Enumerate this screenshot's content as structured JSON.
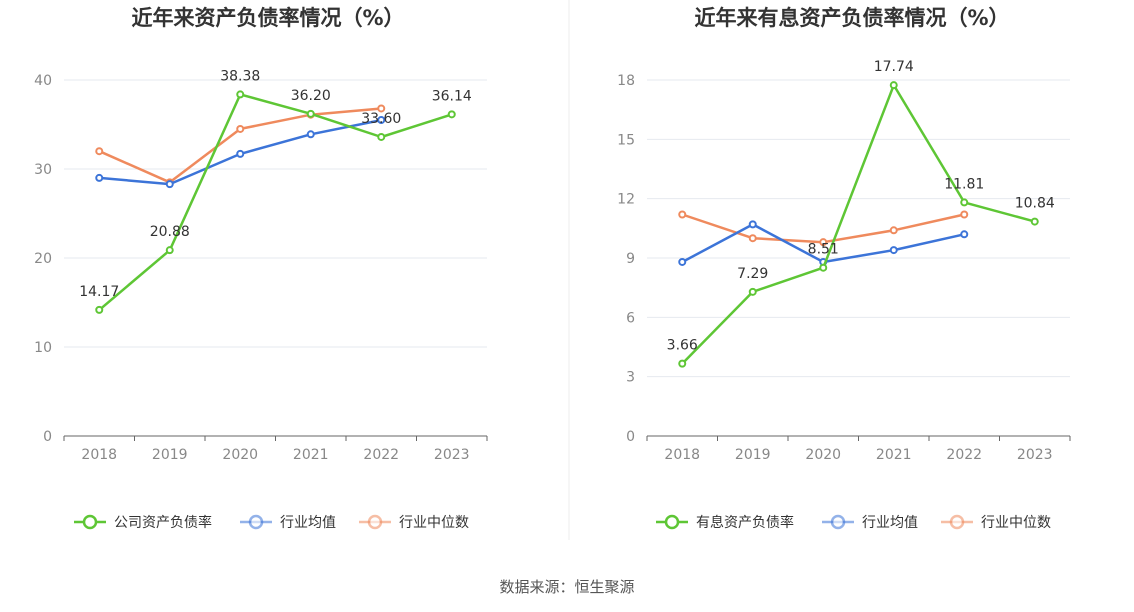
{
  "source": "数据来源：恒生聚源",
  "colors": {
    "company": "#5ec635",
    "industry_avg": "#3c74d8",
    "industry_median": "#ef8a5d"
  },
  "chart_data": [
    {
      "type": "line",
      "title": "近年来资产负债率情况（%）",
      "categories": [
        "2018",
        "2019",
        "2020",
        "2021",
        "2022",
        "2023"
      ],
      "ylim": [
        0,
        40
      ],
      "yticks": [
        "0",
        "10",
        "20",
        "30",
        "40"
      ],
      "grid": true,
      "legend_position": "bottom",
      "series": [
        {
          "name": "公司资产负债率",
          "color": "#5ec635",
          "values": [
            14.17,
            20.88,
            38.38,
            36.2,
            33.6,
            36.14
          ],
          "labels": [
            "14.17",
            "20.88",
            "38.38",
            "36.20",
            "33.60",
            "36.14"
          ]
        },
        {
          "name": "行业均值",
          "color": "#3c74d8",
          "values": [
            29.0,
            28.3,
            31.7,
            33.9,
            35.5,
            null
          ]
        },
        {
          "name": "行业中位数",
          "color": "#ef8a5d",
          "values": [
            32.0,
            28.5,
            34.5,
            36.1,
            36.8,
            null
          ]
        }
      ]
    },
    {
      "type": "line",
      "title": "近年来有息资产负债率情况（%）",
      "categories": [
        "2018",
        "2019",
        "2020",
        "2021",
        "2022",
        "2023"
      ],
      "ylim": [
        0,
        18
      ],
      "yticks": [
        "0",
        "3",
        "6",
        "9",
        "12",
        "15",
        "18"
      ],
      "grid": true,
      "legend_position": "bottom",
      "series": [
        {
          "name": "有息资产负债率",
          "color": "#5ec635",
          "values": [
            3.66,
            7.29,
            8.51,
            17.74,
            11.81,
            10.84
          ],
          "labels": [
            "3.66",
            "7.29",
            "8.51",
            "17.74",
            "11.81",
            "10.84"
          ]
        },
        {
          "name": "行业均值",
          "color": "#3c74d8",
          "values": [
            8.8,
            10.7,
            8.8,
            9.4,
            10.2,
            null
          ]
        },
        {
          "name": "行业中位数",
          "color": "#ef8a5d",
          "values": [
            11.2,
            10.0,
            9.8,
            10.4,
            11.2,
            null
          ]
        }
      ]
    }
  ]
}
